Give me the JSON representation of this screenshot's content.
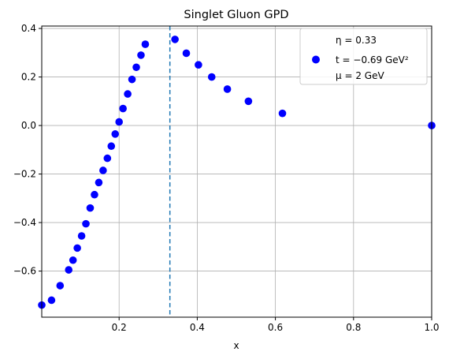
{
  "chart_data": {
    "type": "scatter",
    "title": "Singlet Gluon GPD",
    "xlabel": "x",
    "ylabel": "",
    "xlim": [
      0.002,
      1.0
    ],
    "ylim": [
      -0.79,
      0.41
    ],
    "xticks": [
      0.2,
      0.4,
      0.6,
      0.8,
      1.0
    ],
    "xtick_labels": [
      "0.2",
      "0.4",
      "0.6",
      "0.8",
      "1.0"
    ],
    "yticks": [
      -0.6,
      -0.4,
      -0.2,
      0.0,
      0.2,
      0.4
    ],
    "ytick_labels": [
      "−0.6",
      "−0.4",
      "−0.2",
      "0.0",
      "0.2",
      "0.4"
    ],
    "grid": true,
    "vline": {
      "x": 0.33,
      "style": "dashed",
      "color": "#1f77b4"
    },
    "marker_color": "#0000ff",
    "series": [
      {
        "name": "",
        "x": [
          0.002,
          0.027,
          0.049,
          0.071,
          0.082,
          0.093,
          0.104,
          0.115,
          0.126,
          0.137,
          0.148,
          0.159,
          0.17,
          0.18,
          0.19,
          0.2,
          0.21,
          0.222,
          0.233,
          0.244,
          0.256,
          0.267,
          0.343,
          0.372,
          0.403,
          0.437,
          0.477,
          0.531,
          0.618,
          1.0
        ],
        "y": [
          -0.74,
          -0.72,
          -0.66,
          -0.595,
          -0.555,
          -0.505,
          -0.455,
          -0.405,
          -0.34,
          -0.285,
          -0.235,
          -0.185,
          -0.135,
          -0.085,
          -0.035,
          0.015,
          0.07,
          0.13,
          0.19,
          0.24,
          0.29,
          0.335,
          0.355,
          0.298,
          0.25,
          0.2,
          0.15,
          0.1,
          0.05,
          0.0
        ]
      }
    ],
    "legend": {
      "position": "top-right",
      "lines": [
        "η = 0.33",
        "t = −0.69 GeV²",
        "μ = 2 GeV"
      ]
    }
  }
}
